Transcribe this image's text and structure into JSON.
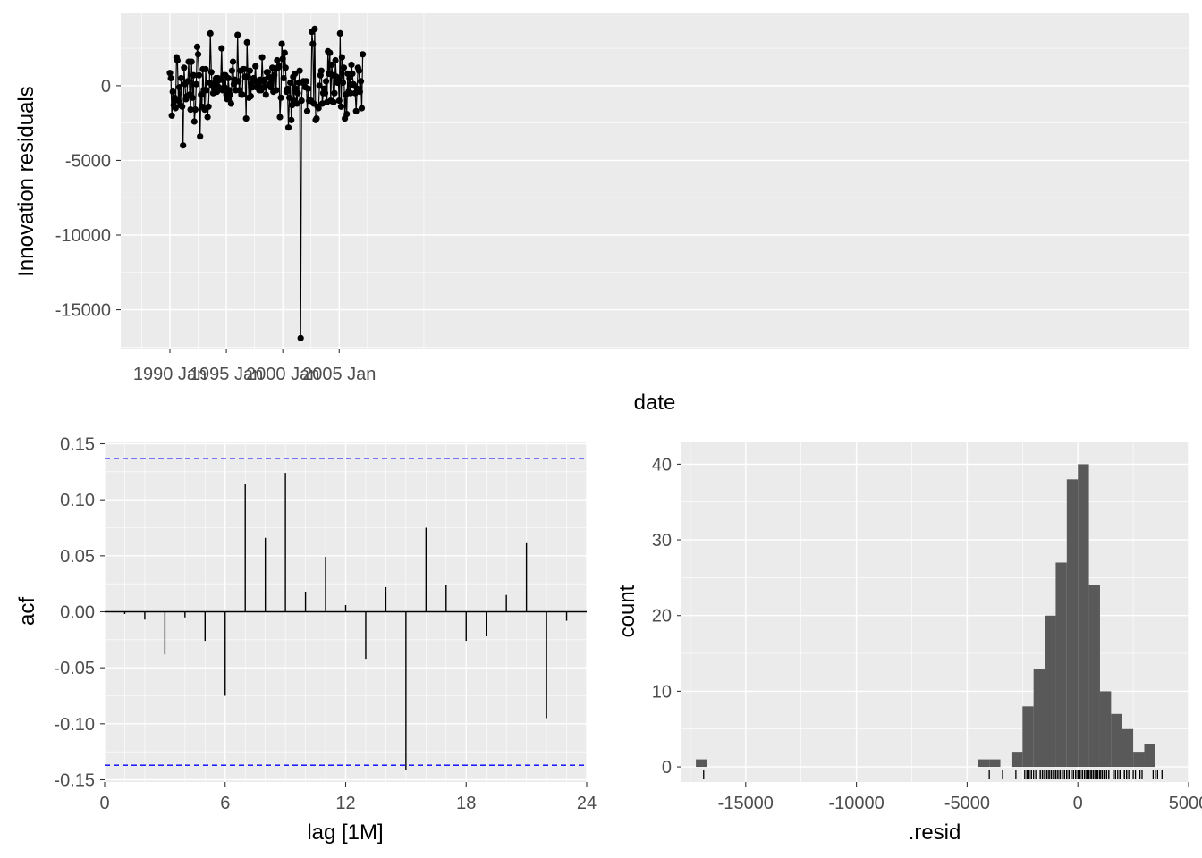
{
  "chart_data": [
    {
      "type": "line",
      "xlabel": "date",
      "ylabel": "Innovation residuals",
      "x_ticks": [
        "1990 Jan",
        "1995 Jan",
        "2000 Jan",
        "2005 Jan"
      ],
      "y_ticks": [
        "0",
        "-5000",
        "-10000",
        "-15000"
      ],
      "ylim": [
        -17600,
        4900
      ],
      "x_start": "1990 Jan",
      "x_end": "2007 Feb",
      "grid": true,
      "series": [
        {
          "points": true,
          "values": [
            850,
            500,
            -2000,
            -400,
            -1300,
            -800,
            -1500,
            1900,
            1700,
            -1000,
            -100,
            -1300,
            500,
            -1400,
            -4000,
            1200,
            100,
            -900,
            -700,
            300,
            1600,
            -600,
            -1600,
            1600,
            -800,
            700,
            -2400,
            -1600,
            100,
            2600,
            2100,
            700,
            -3400,
            -600,
            -1400,
            1100,
            -300,
            -1600,
            1100,
            -300,
            -2100,
            -1400,
            200,
            3500,
            900,
            0,
            -500,
            -200,
            200,
            500,
            -400,
            500,
            -100,
            400,
            400,
            2500,
            -300,
            700,
            -100,
            700,
            -600,
            -900,
            500,
            -300,
            -600,
            -1200,
            1000,
            1600,
            100,
            400,
            -300,
            300,
            3400,
            300,
            -300,
            1000,
            -600,
            -600,
            1100,
            1100,
            600,
            -2200,
            2900,
            600,
            -800,
            1000,
            -700,
            200,
            -100,
            500,
            400,
            1300,
            -100,
            200,
            -100,
            -300,
            400,
            -300,
            1900,
            300,
            -100,
            400,
            -600,
            900,
            900,
            600,
            100,
            -100,
            400,
            1200,
            -400,
            700,
            1100,
            -300,
            1700,
            1200,
            1300,
            -2100,
            -800,
            2800,
            1800,
            500,
            2200,
            1200,
            -400,
            -200,
            -2800,
            -800,
            200,
            -2300,
            -1300,
            600,
            -1000,
            800,
            -200,
            -1200,
            -500,
            200,
            1000,
            -16900,
            -1000,
            200,
            300,
            200,
            -100,
            300,
            -1700,
            -200,
            -1000,
            -1000,
            -1000,
            3600,
            2800,
            -1200,
            3800,
            -2300,
            -2200,
            -1400,
            -1500,
            0,
            700,
            1000,
            -1200,
            -500,
            -200,
            -500,
            300,
            -1100,
            2300,
            800,
            2200,
            -1000,
            1400,
            700,
            -1100,
            -500,
            1700,
            600,
            200,
            400,
            -1000,
            3500,
            -1400,
            1900,
            200,
            1200,
            -2200,
            -600,
            -1900,
            800,
            -400,
            500,
            -500,
            1400,
            800,
            100,
            0,
            -500,
            -1700,
            -200,
            1200,
            1000,
            -400,
            300,
            -1500,
            2100
          ]
        }
      ]
    },
    {
      "type": "bar",
      "xlabel": "lag [1M]",
      "ylabel": "acf",
      "x_ticks": [
        "0",
        "6",
        "12",
        "18",
        "24"
      ],
      "y_ticks": [
        "0.15",
        "0.10",
        "0.05",
        "0.00",
        "-0.05",
        "-0.10",
        "-0.15"
      ],
      "xlim": [
        0,
        24
      ],
      "ylim": [
        -0.152,
        0.152
      ],
      "lags": [
        1,
        2,
        3,
        4,
        5,
        6,
        7,
        8,
        9,
        10,
        11,
        12,
        13,
        14,
        15,
        16,
        17,
        18,
        19,
        20,
        21,
        22,
        23
      ],
      "values": [
        -0.002,
        -0.007,
        -0.038,
        -0.005,
        -0.026,
        -0.075,
        0.114,
        0.066,
        0.124,
        0.018,
        0.049,
        0.006,
        -0.042,
        0.022,
        -0.141,
        0.075,
        0.024,
        -0.026,
        -0.022,
        0.015,
        0.062,
        -0.095,
        -0.008
      ],
      "confidence_band": [
        0.137,
        -0.137
      ],
      "band_color": "#0000ff",
      "grid": true
    },
    {
      "type": "bar",
      "xlabel": ".resid",
      "ylabel": "count",
      "x_ticks": [
        "-15000",
        "-10000",
        "-5000",
        "0",
        "5000"
      ],
      "y_ticks": [
        "40",
        "30",
        "20",
        "10",
        "0"
      ],
      "xlim": [
        -17900,
        5000
      ],
      "ylim": [
        -2,
        43
      ],
      "bin_width": 500,
      "bins": [
        {
          "start": -17250,
          "count": 1
        },
        {
          "start": -4500,
          "count": 1
        },
        {
          "start": -4000,
          "count": 1
        },
        {
          "start": -3000,
          "count": 2
        },
        {
          "start": -2500,
          "count": 8
        },
        {
          "start": -2000,
          "count": 13
        },
        {
          "start": -1500,
          "count": 20
        },
        {
          "start": -1000,
          "count": 27
        },
        {
          "start": -500,
          "count": 38
        },
        {
          "start": 0,
          "count": 40
        },
        {
          "start": 500,
          "count": 24
        },
        {
          "start": 1000,
          "count": 10
        },
        {
          "start": 1500,
          "count": 7
        },
        {
          "start": 2000,
          "count": 5
        },
        {
          "start": 2500,
          "count": 2
        },
        {
          "start": 3000,
          "count": 3
        }
      ],
      "bar_color": "#595959",
      "rug": true,
      "grid": true
    }
  ]
}
